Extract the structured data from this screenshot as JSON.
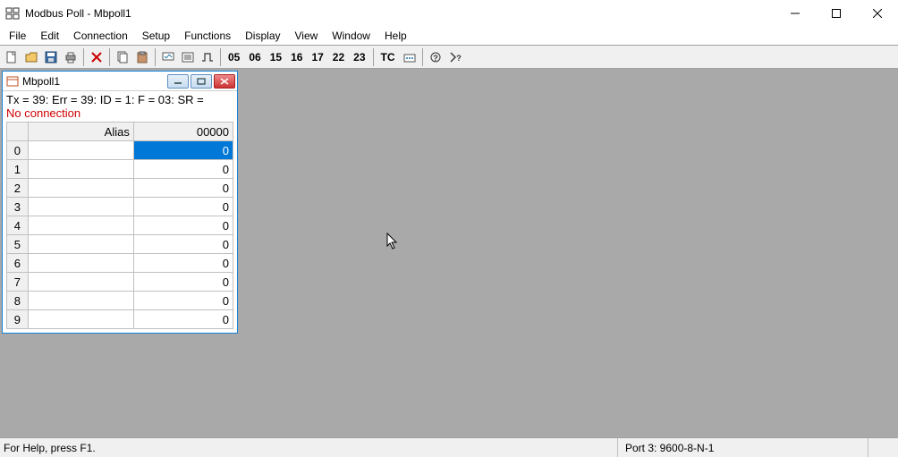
{
  "window": {
    "title": "Modbus Poll - Mbpoll1"
  },
  "menu": {
    "items": [
      "File",
      "Edit",
      "Connection",
      "Setup",
      "Functions",
      "Display",
      "View",
      "Window",
      "Help"
    ]
  },
  "toolbar": {
    "func_codes": [
      "05",
      "06",
      "15",
      "16",
      "17",
      "22",
      "23"
    ],
    "tc_label": "TC"
  },
  "child": {
    "title": "Mbpoll1",
    "status_line": "Tx = 39: Err = 39: ID = 1: F = 03: SR =",
    "error_line": "No connection",
    "columns": {
      "alias": "Alias",
      "value": "00000"
    },
    "rows": [
      {
        "idx": "0",
        "alias": "",
        "val": "0",
        "selected": true
      },
      {
        "idx": "1",
        "alias": "",
        "val": "0",
        "selected": false
      },
      {
        "idx": "2",
        "alias": "",
        "val": "0",
        "selected": false
      },
      {
        "idx": "3",
        "alias": "",
        "val": "0",
        "selected": false
      },
      {
        "idx": "4",
        "alias": "",
        "val": "0",
        "selected": false
      },
      {
        "idx": "5",
        "alias": "",
        "val": "0",
        "selected": false
      },
      {
        "idx": "6",
        "alias": "",
        "val": "0",
        "selected": false
      },
      {
        "idx": "7",
        "alias": "",
        "val": "0",
        "selected": false
      },
      {
        "idx": "8",
        "alias": "",
        "val": "0",
        "selected": false
      },
      {
        "idx": "9",
        "alias": "",
        "val": "0",
        "selected": false
      }
    ]
  },
  "statusbar": {
    "help": "For Help, press F1.",
    "port": "Port 3: 9600-8-N-1"
  },
  "colors": {
    "mdi_bg": "#a9a9a9",
    "selection": "#0078d7",
    "error_text": "#d00000",
    "child_border": "#1883d7"
  }
}
